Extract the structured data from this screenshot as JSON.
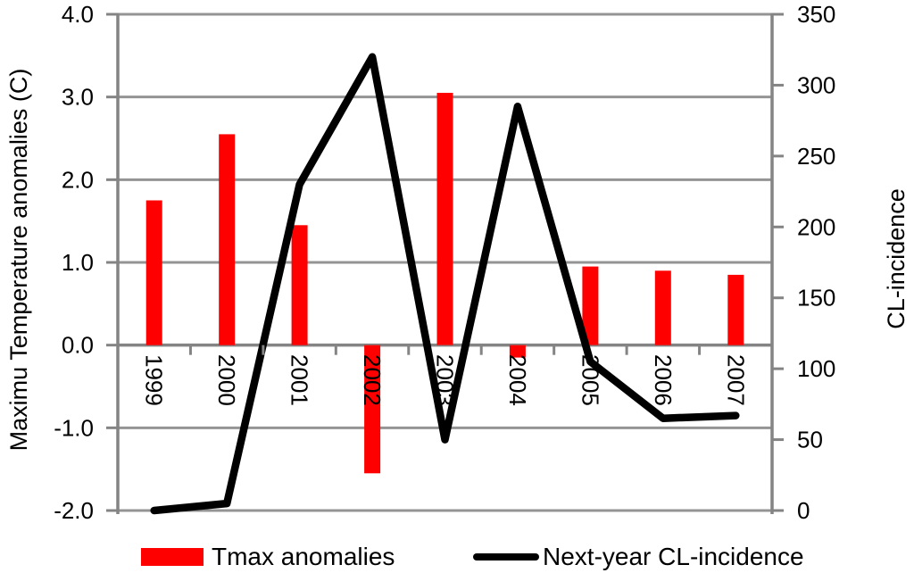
{
  "chart_data": {
    "type": "combo-bar-line",
    "categories": [
      "1999",
      "2000",
      "2001",
      "2002",
      "2003",
      "2004",
      "2005",
      "2006",
      "2007"
    ],
    "series": [
      {
        "name": "Tmax anomalies",
        "type": "bar",
        "axis": "left",
        "color": "#ff0000",
        "values": [
          1.75,
          2.55,
          1.45,
          -1.55,
          3.05,
          -0.15,
          0.95,
          0.9,
          0.85
        ]
      },
      {
        "name": "Next-year CL-incidence",
        "type": "line",
        "axis": "right",
        "color": "#000000",
        "values": [
          0,
          5,
          230,
          320,
          50,
          285,
          105,
          65,
          67
        ]
      }
    ],
    "left_axis": {
      "title": "Maximu Temperature anomalies (C)",
      "min": -2,
      "max": 4,
      "step": 1,
      "tick_labels": [
        "4.0",
        "3.0",
        "2.0",
        "1.0",
        "0.0",
        "-1.0",
        "-2.0"
      ]
    },
    "right_axis": {
      "title": "CL-incidence",
      "min": 0,
      "max": 350,
      "step": 50,
      "tick_labels": [
        "350",
        "300",
        "250",
        "200",
        "150",
        "100",
        "50",
        "0"
      ]
    },
    "legend": [
      {
        "label": "Tmax anomalies",
        "swatch": "bar",
        "color": "#ff0000"
      },
      {
        "label": "Next-year CL-incidence",
        "swatch": "line",
        "color": "#000000"
      }
    ],
    "grid": "on",
    "grid_color": "#949494",
    "axis_color": "#848484",
    "text_color": "#000000",
    "background": "#ffffff"
  }
}
